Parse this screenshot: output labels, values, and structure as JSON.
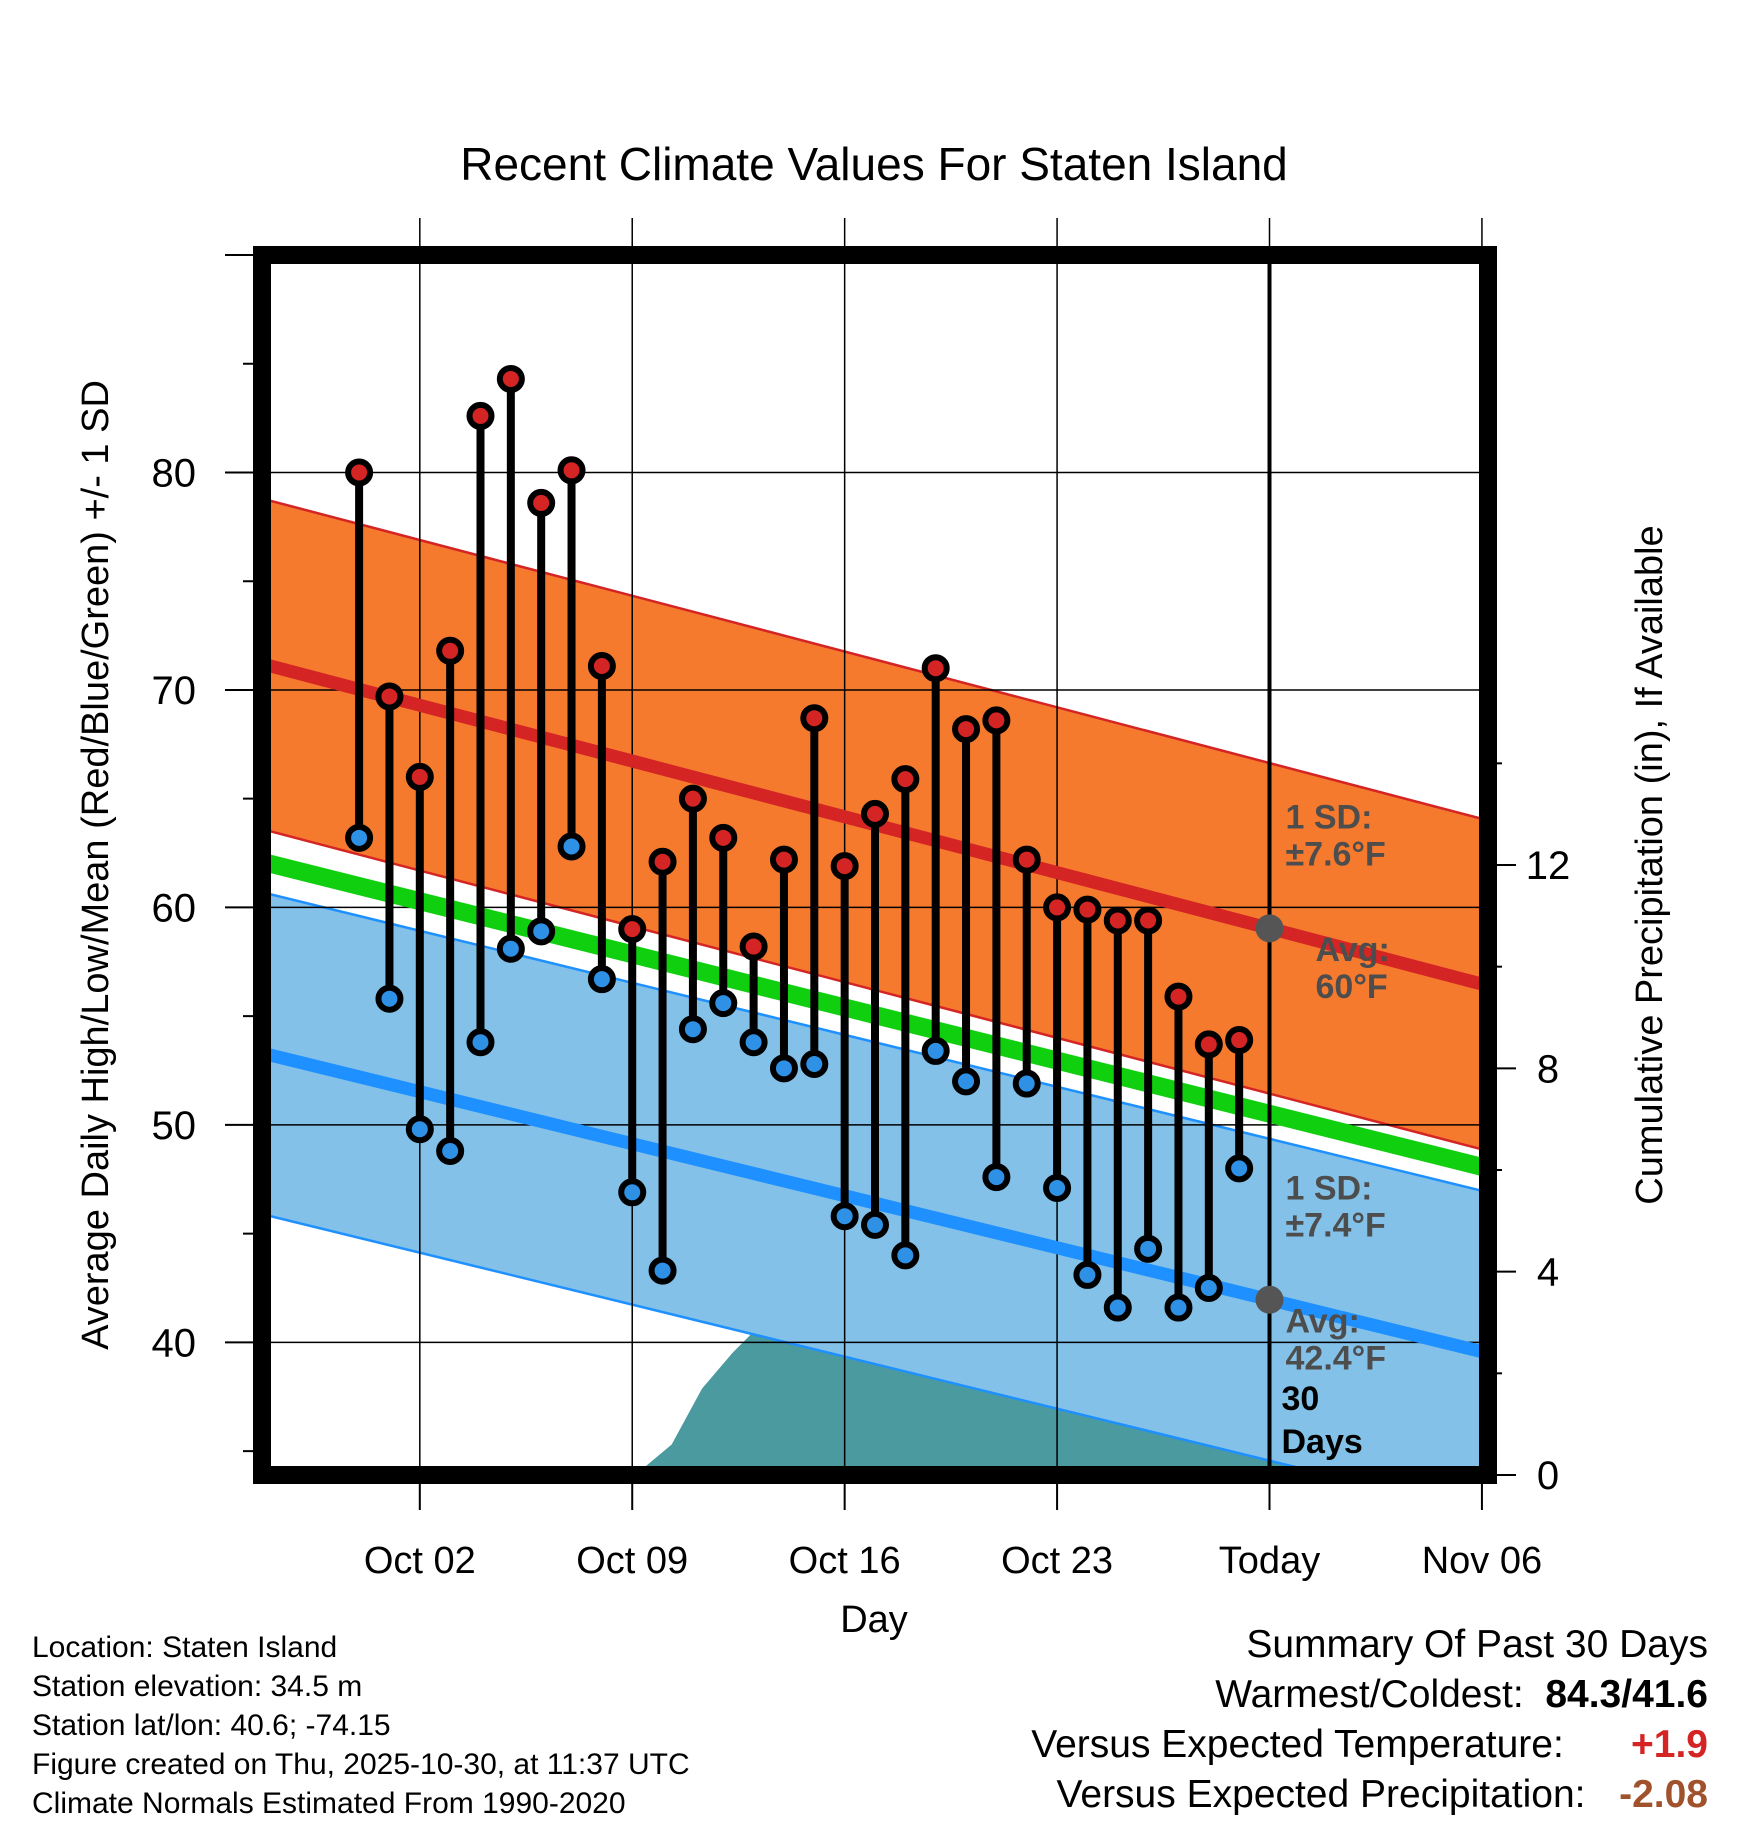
{
  "chart_data": {
    "type": "line",
    "title": "Recent Climate Values For Staten Island",
    "xlabel": "Day",
    "ylabel": "Average Daily High/Low/Mean (Red/Blue/Green) +/- 1 SD",
    "y2label": "Cumulative Precipitation (in), If Available",
    "x_ticks": [
      "Oct 02",
      "Oct 09",
      "Oct 16",
      "Oct 23",
      "Today",
      "Nov 06"
    ],
    "y_ticks": [
      "40",
      "50",
      "60",
      "70",
      "80"
    ],
    "y2_ticks": [
      "0",
      "4",
      "8",
      "12"
    ],
    "xlim": [
      -3.2,
      37.2
    ],
    "ylim": [
      33.9,
      90
    ],
    "y2lim": [
      0,
      24
    ],
    "days": [
      "Sep 30",
      "Oct 01",
      "Oct 02",
      "Oct 03",
      "Oct 04",
      "Oct 05",
      "Oct 06",
      "Oct 07",
      "Oct 08",
      "Oct 09",
      "Oct 10",
      "Oct 11",
      "Oct 12",
      "Oct 13",
      "Oct 14",
      "Oct 15",
      "Oct 16",
      "Oct 17",
      "Oct 18",
      "Oct 19",
      "Oct 20",
      "Oct 21",
      "Oct 22",
      "Oct 23",
      "Oct 24",
      "Oct 25",
      "Oct 26",
      "Oct 27",
      "Oct 28",
      "Oct 29"
    ],
    "daily_high": [
      80.0,
      69.7,
      66.0,
      71.8,
      82.6,
      84.3,
      78.6,
      80.1,
      71.1,
      59.0,
      62.1,
      65.0,
      63.2,
      58.2,
      62.2,
      68.7,
      61.9,
      64.3,
      65.9,
      71.0,
      68.2,
      68.6,
      62.2,
      60.0,
      59.9,
      59.4,
      59.4,
      55.9,
      53.7,
      53.9
    ],
    "daily_low": [
      63.2,
      55.8,
      49.8,
      48.8,
      53.8,
      58.1,
      58.9,
      62.8,
      56.7,
      46.9,
      43.3,
      54.4,
      55.6,
      53.8,
      52.6,
      52.8,
      45.8,
      45.4,
      44.0,
      53.4,
      52.0,
      47.6,
      51.9,
      47.1,
      43.1,
      41.6,
      44.3,
      41.6,
      42.5,
      48.0
    ],
    "normal_high": {
      "start": 71.2,
      "end": 56.4
    },
    "normal_low": {
      "start": 53.3,
      "end": 39.5
    },
    "normal_mean": {
      "start": 62.1,
      "end": 48.0
    },
    "high_sd": 7.6,
    "low_sd": 7.4,
    "precip_cumulative": {
      "x": [
        -3.2,
        7.5,
        8.5,
        9.3,
        10.3,
        11.3,
        12.3,
        13.3,
        17,
        19.3,
        20.5,
        21.5,
        22.3,
        27.5,
        28.5,
        37.2
      ],
      "values": [
        0,
        0,
        0,
        0.1,
        0.6,
        1.7,
        2.4,
        3.0,
        3.0,
        3.0,
        3.3,
        3.5,
        3.7,
        3.7,
        3.8,
        3.8
      ]
    },
    "labels": {
      "high_sd": [
        "1 SD:",
        "±7.6°F"
      ],
      "high_avg": [
        "Avg:",
        "60°F"
      ],
      "low_sd": [
        "1 SD:",
        "±7.4°F"
      ],
      "low_avg": [
        "Avg:",
        "42.4°F"
      ],
      "days_window": [
        "30",
        "Days"
      ]
    },
    "colors": {
      "high_band": "#f57a2e",
      "high_line": "#d42424",
      "low_band": "#83c1e8",
      "low_line": "#1e90ff",
      "mean_line": "#0fcf0f",
      "precip": "#4a9aa0",
      "high_marker": "#d42424",
      "low_marker": "#2e91e6",
      "label_text": "#4d4d4d"
    }
  },
  "info": {
    "location": "Location: Staten Island",
    "elevation": "Station elevation: 34.5 m",
    "latlon": "Station lat/lon: 40.6; -74.15",
    "created": "Figure created on Thu, 2025-10-30, at 11:37 UTC",
    "normals": "Climate Normals Estimated From 1990-2020"
  },
  "summary": {
    "title": "Summary Of Past 30 Days",
    "warmest_label": "Warmest/Coldest:",
    "warmest_value": "84.3/41.6",
    "temp_label": "Versus Expected Temperature:",
    "temp_value": "+1.9",
    "temp_color": "#d42424",
    "precip_label": "Versus Expected Precipitation:",
    "precip_value": "-2.08",
    "precip_color": "#a0522d"
  }
}
